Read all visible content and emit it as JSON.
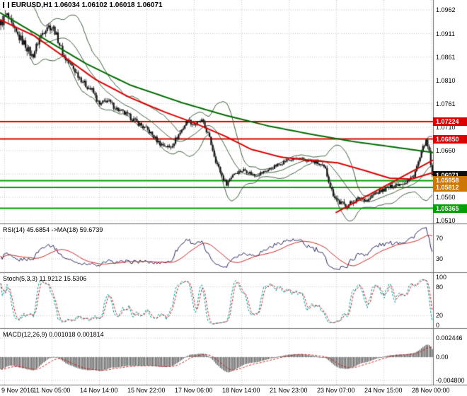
{
  "window": {
    "title_symbol": "EURUSD,H1",
    "title_ohlc": "1.06034 1.06102 1.06018 1.06071"
  },
  "colors": {
    "bg": "#ffffff",
    "grid": "#c9c9c9",
    "candle": "#141414",
    "ma_fast": "#dd0000",
    "ma_slow": "#006b00",
    "bollinger": "#3c5c3c",
    "resistance": "#dd0000",
    "support": "#00a000",
    "trendline": "#dd0000",
    "rsi_line": "#26265e",
    "rsi_ma": "#cc2222",
    "stoch_k": "#009999",
    "stoch_d": "#cc2222",
    "macd_hist": "#5f5f5f",
    "macd_signal": "#cc2222",
    "separator": "#6e6e6e",
    "tag_current_bg": "#111111"
  },
  "price_axis": {
    "labels": [
      "1.0962",
      "1.0911",
      "1.0861",
      "1.0810",
      "1.0761",
      "1.0710",
      "1.0660",
      "1.0610",
      "1.0560",
      "1.0510"
    ],
    "values": [
      1.0962,
      1.0911,
      1.0861,
      1.081,
      1.0761,
      1.071,
      1.066,
      1.061,
      1.056,
      1.051
    ]
  },
  "time_axis": {
    "labels": [
      "9 Nov 2016",
      "11 Nov 05:00",
      "14 Nov 14:00",
      "15 Nov 22:00",
      "17 Nov 06:00",
      "18 Nov 14:00",
      "21 Nov 23:00",
      "23 Nov 07:00",
      "24 Nov 15:00",
      "28 Nov 00:00"
    ]
  },
  "price_tags": [
    {
      "text": "1.07224",
      "price": 1.07224,
      "bg": "#dd0000"
    },
    {
      "text": "1.06850",
      "price": 1.0685,
      "bg": "#dd0000"
    },
    {
      "text": "1.06071",
      "price": 1.06071,
      "bg": "#111111"
    },
    {
      "text": "1.05958",
      "price": 1.05958,
      "bg": "#cc7700"
    },
    {
      "text": "1.05812",
      "price": 1.05812,
      "bg": "#cc7700"
    },
    {
      "text": "1.05365",
      "price": 1.05365,
      "bg": "#00a000"
    }
  ],
  "panels": {
    "rsi": {
      "label": "RSI(14) 45.6854 ->MA(18) 59.6739",
      "levels": [
        "70",
        "30"
      ]
    },
    "stoch": {
      "label": "Stoch(5,3,3) 11.9212 15.5306",
      "levels": [
        "100",
        "80",
        "20",
        "0"
      ]
    },
    "macd": {
      "label": "MACD(12,26,9) 0.001018 0.001814",
      "levels": [
        "0.002446",
        "0.00",
        "-0.004800"
      ]
    }
  },
  "chart_data": {
    "type": "candlestick",
    "symbol": "EURUSD",
    "timeframe": "H1",
    "current_ohlc": {
      "open": 1.06034,
      "high": 1.06102,
      "low": 1.06018,
      "close": 1.06071
    },
    "y_range": [
      1.051,
      1.0962
    ],
    "x_range": [
      "9 Nov 2016",
      "28 Nov 00:00"
    ],
    "candle_count": 280,
    "price_path": [
      [
        0,
        1.0932
      ],
      [
        0.013,
        1.0952
      ],
      [
        0.03,
        1.0917
      ],
      [
        0.057,
        1.0887
      ],
      [
        0.073,
        1.0861
      ],
      [
        0.09,
        1.0902
      ],
      [
        0.107,
        1.0928
      ],
      [
        0.123,
        1.0922
      ],
      [
        0.147,
        1.0861
      ],
      [
        0.163,
        1.0843
      ],
      [
        0.18,
        1.0821
      ],
      [
        0.196,
        1.0801
      ],
      [
        0.212,
        1.0789
      ],
      [
        0.229,
        1.0757
      ],
      [
        0.245,
        1.0769
      ],
      [
        0.27,
        1.0749
      ],
      [
        0.294,
        1.0736
      ],
      [
        0.319,
        1.0719
      ],
      [
        0.343,
        1.0702
      ],
      [
        0.368,
        1.0676
      ],
      [
        0.392,
        1.0666
      ],
      [
        0.417,
        1.0701
      ],
      [
        0.433,
        1.0725
      ],
      [
        0.449,
        1.0716
      ],
      [
        0.466,
        1.0724
      ],
      [
        0.482,
        1.0692
      ],
      [
        0.498,
        1.0639
      ],
      [
        0.515,
        1.0601
      ],
      [
        0.523,
        1.0589
      ],
      [
        0.539,
        1.0611
      ],
      [
        0.564,
        1.0619
      ],
      [
        0.588,
        1.0607
      ],
      [
        0.613,
        1.0616
      ],
      [
        0.637,
        1.0627
      ],
      [
        0.662,
        1.0639
      ],
      [
        0.686,
        1.0643
      ],
      [
        0.711,
        1.0639
      ],
      [
        0.735,
        1.0633
      ],
      [
        0.752,
        1.0621
      ],
      [
        0.768,
        1.0571
      ],
      [
        0.784,
        1.0549
      ],
      [
        0.801,
        1.0542
      ],
      [
        0.817,
        1.0551
      ],
      [
        0.833,
        1.0559
      ],
      [
        0.85,
        1.0553
      ],
      [
        0.866,
        1.0567
      ],
      [
        0.89,
        1.0577
      ],
      [
        0.915,
        1.0587
      ],
      [
        0.939,
        1.0593
      ],
      [
        0.956,
        1.0605
      ],
      [
        0.972,
        1.0646
      ],
      [
        0.984,
        1.0682
      ],
      [
        0.992,
        1.0661
      ],
      [
        1,
        1.0607
      ]
    ],
    "volatility_path": [
      [
        0,
        1.9
      ],
      [
        0.08,
        1.5
      ],
      [
        0.16,
        1.2
      ],
      [
        0.3,
        1.0
      ],
      [
        0.45,
        0.9
      ],
      [
        0.6,
        0.7
      ],
      [
        0.72,
        0.7
      ],
      [
        0.78,
        1.2
      ],
      [
        0.85,
        0.8
      ],
      [
        0.95,
        0.9
      ],
      [
        1,
        1.1
      ]
    ],
    "ma_fast_path": [
      [
        0,
        1.0941
      ],
      [
        0.08,
        1.0906
      ],
      [
        0.15,
        1.086
      ],
      [
        0.22,
        1.0813
      ],
      [
        0.3,
        1.0774
      ],
      [
        0.38,
        1.0743
      ],
      [
        0.45,
        1.0719
      ],
      [
        0.52,
        1.0691
      ],
      [
        0.58,
        1.0663
      ],
      [
        0.65,
        1.0646
      ],
      [
        0.72,
        1.0639
      ],
      [
        0.78,
        1.0634
      ],
      [
        0.84,
        1.0618
      ],
      [
        0.9,
        1.0601
      ],
      [
        0.95,
        1.0599
      ],
      [
        1,
        1.0613
      ]
    ],
    "ma_slow_path": [
      [
        0,
        1.0956
      ],
      [
        0.1,
        1.0901
      ],
      [
        0.2,
        1.0846
      ],
      [
        0.3,
        1.0801
      ],
      [
        0.42,
        1.0763
      ],
      [
        0.52,
        1.0736
      ],
      [
        0.62,
        1.0713
      ],
      [
        0.72,
        1.0695
      ],
      [
        0.82,
        1.0679
      ],
      [
        0.9,
        1.0669
      ],
      [
        1,
        1.0656
      ]
    ],
    "bollinger": {
      "period": 20,
      "deviation": 2
    },
    "hlines": [
      {
        "price": 1.07224,
        "color": "#dd0000",
        "width": 2,
        "role": "resistance"
      },
      {
        "price": 1.0685,
        "color": "#dd0000",
        "width": 2,
        "role": "resistance"
      },
      {
        "price": 1.05958,
        "color": "#00a000",
        "width": 2,
        "role": "support"
      },
      {
        "price": 1.05812,
        "color": "#00a000",
        "width": 2,
        "role": "support"
      },
      {
        "price": 1.05365,
        "color": "#00a000",
        "width": 2,
        "role": "support"
      }
    ],
    "trendline": {
      "t1": 0.775,
      "price1": 1.0527,
      "t2": 1.0,
      "price2": 1.064
    },
    "indicators": {
      "rsi": {
        "period": 14,
        "ma_period": 18,
        "current": 45.6854,
        "ma_current": 59.6739,
        "levels": [
          70,
          30
        ]
      },
      "stoch": {
        "k": 5,
        "d": 3,
        "slowing": 3,
        "current_k": 11.9212,
        "current_d": 15.5306,
        "levels": [
          100,
          80,
          20,
          0
        ]
      },
      "macd": {
        "fast": 12,
        "slow": 26,
        "signal": 9,
        "current": 0.001018,
        "current_signal": 0.001814,
        "axis_levels": [
          0.002446,
          0.0,
          -0.0048
        ]
      }
    },
    "resistance_levels": [
      1.07224,
      1.0685
    ],
    "support_levels": [
      1.05958,
      1.05812,
      1.05365
    ]
  }
}
